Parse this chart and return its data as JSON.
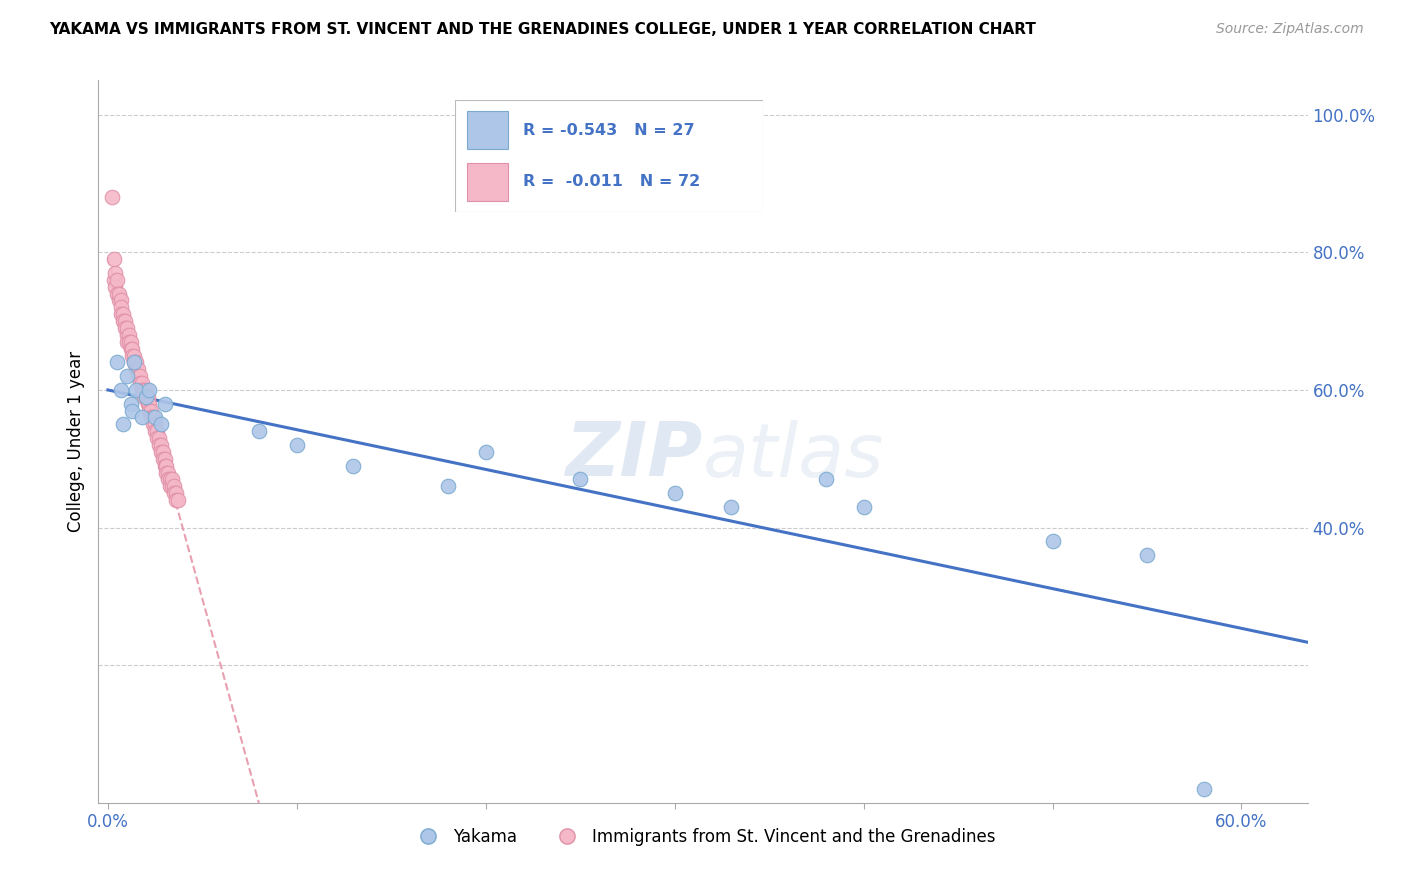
{
  "title": "YAKAMA VS IMMIGRANTS FROM ST. VINCENT AND THE GRENADINES COLLEGE, UNDER 1 YEAR CORRELATION CHART",
  "source": "Source: ZipAtlas.com",
  "ylabel": "College, Under 1 year",
  "yakama_R": -0.543,
  "yakama_N": 27,
  "svg_R": -0.011,
  "svg_N": 72,
  "yakama_color": "#aec6e8",
  "svg_color": "#f4b8c8",
  "trendline_yakama_color": "#4472c4",
  "trendline_svg_color": "#e8a0b0",
  "watermark": "ZIPatlas",
  "legend_label_1": "Yakama",
  "legend_label_2": "Immigrants from St. Vincent and the Grenadines",
  "yakama_x": [
    0.005,
    0.007,
    0.008,
    0.01,
    0.012,
    0.013,
    0.014,
    0.015,
    0.018,
    0.02,
    0.022,
    0.025,
    0.028,
    0.03,
    0.08,
    0.1,
    0.13,
    0.18,
    0.2,
    0.25,
    0.3,
    0.33,
    0.38,
    0.4,
    0.5,
    0.55,
    0.58
  ],
  "yakama_y": [
    0.64,
    0.6,
    0.55,
    0.62,
    0.58,
    0.57,
    0.64,
    0.6,
    0.56,
    0.59,
    0.6,
    0.56,
    0.55,
    0.58,
    0.54,
    0.52,
    0.49,
    0.46,
    0.51,
    0.47,
    0.45,
    0.43,
    0.47,
    0.43,
    0.38,
    0.36,
    0.02
  ],
  "svg_x": [
    0.002,
    0.003,
    0.003,
    0.004,
    0.004,
    0.005,
    0.005,
    0.006,
    0.006,
    0.007,
    0.007,
    0.007,
    0.008,
    0.008,
    0.009,
    0.009,
    0.01,
    0.01,
    0.01,
    0.011,
    0.011,
    0.012,
    0.012,
    0.013,
    0.013,
    0.014,
    0.014,
    0.015,
    0.015,
    0.016,
    0.016,
    0.017,
    0.017,
    0.018,
    0.018,
    0.019,
    0.019,
    0.02,
    0.02,
    0.021,
    0.021,
    0.022,
    0.022,
    0.023,
    0.023,
    0.024,
    0.024,
    0.025,
    0.025,
    0.026,
    0.026,
    0.027,
    0.027,
    0.028,
    0.028,
    0.029,
    0.029,
    0.03,
    0.03,
    0.031,
    0.031,
    0.032,
    0.032,
    0.033,
    0.033,
    0.034,
    0.034,
    0.035,
    0.035,
    0.036,
    0.036,
    0.037
  ],
  "svg_y": [
    0.88,
    0.79,
    0.76,
    0.77,
    0.75,
    0.76,
    0.74,
    0.73,
    0.74,
    0.73,
    0.72,
    0.71,
    0.71,
    0.7,
    0.7,
    0.69,
    0.68,
    0.69,
    0.67,
    0.68,
    0.67,
    0.67,
    0.66,
    0.66,
    0.65,
    0.65,
    0.64,
    0.64,
    0.63,
    0.63,
    0.62,
    0.62,
    0.61,
    0.61,
    0.6,
    0.6,
    0.59,
    0.59,
    0.6,
    0.58,
    0.59,
    0.58,
    0.57,
    0.57,
    0.56,
    0.56,
    0.55,
    0.55,
    0.54,
    0.54,
    0.53,
    0.53,
    0.52,
    0.52,
    0.51,
    0.51,
    0.5,
    0.5,
    0.49,
    0.49,
    0.48,
    0.48,
    0.47,
    0.47,
    0.46,
    0.46,
    0.47,
    0.46,
    0.45,
    0.45,
    0.44,
    0.44
  ],
  "xlim": [
    -0.005,
    0.635
  ],
  "ylim": [
    0.0,
    1.05
  ],
  "x_ticks": [
    0.0,
    0.1,
    0.2,
    0.3,
    0.4,
    0.5,
    0.6
  ],
  "x_tick_labels": [
    "0.0%",
    "",
    "",
    "",
    "",
    "",
    "60.0%"
  ],
  "y_tick_vals": [
    0.2,
    0.4,
    0.6,
    0.8,
    1.0
  ],
  "y_tick_labels": [
    "",
    "40.0%",
    "60.0%",
    "80.0%",
    "100.0%"
  ]
}
